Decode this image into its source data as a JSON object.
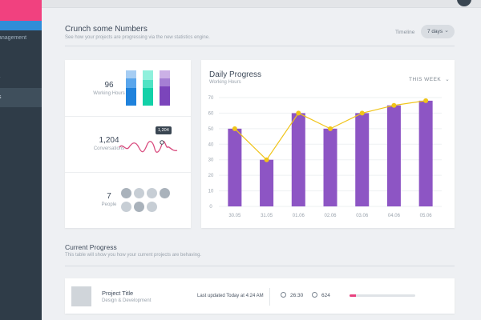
{
  "sidebar": {
    "items": [
      {
        "label": "anagement"
      },
      {
        "label": "r"
      },
      {
        "label": "s"
      }
    ]
  },
  "header": {
    "title": "Crunch some Numbers",
    "subtitle": "See how your projects are progressing via the new statistics engine.",
    "timeline_label": "Timeline",
    "timeline_value": "7 days"
  },
  "stats": {
    "working_hours": {
      "value": "96",
      "label": "Working Hours"
    },
    "conversations": {
      "value": "1,204",
      "label": "Conversations",
      "tooltip": "1,204"
    },
    "people": {
      "value": "7",
      "label": "People"
    }
  },
  "daily": {
    "title": "Daily Progress",
    "subtitle": "Working Hours",
    "period": "THIS WEEK"
  },
  "chart_data": {
    "type": "bar",
    "categories": [
      "30.05",
      "31.05",
      "01.06",
      "02.06",
      "03.06",
      "04.06",
      "05.06"
    ],
    "series": [
      {
        "type": "bar",
        "values": [
          50,
          30,
          60,
          50,
          60,
          65,
          68
        ]
      },
      {
        "type": "line",
        "values": [
          50,
          30,
          60,
          50,
          60,
          65,
          68
        ]
      }
    ],
    "title": "Daily Progress",
    "subtitle": "Working Hours",
    "yticks": [
      0,
      10,
      20,
      30,
      40,
      50,
      60,
      70
    ],
    "ylim": [
      0,
      70
    ],
    "grid": true,
    "colors": {
      "bar": "#8d55c4",
      "line": "#f0c419"
    }
  },
  "current": {
    "title": "Current Progress",
    "subtitle": "This table will show you how your current projects are behaving.",
    "project": {
      "title": "Project Title",
      "category": "Design & Development",
      "updated": "Last updated Today at 4:24 AM",
      "time": "26:30",
      "comments": "624",
      "progress": 0.1
    }
  },
  "colors": {
    "accent": "#f1417f",
    "blue": "#2f8dd8",
    "purple": "#8d55c4",
    "teal": "#1fd4b0",
    "yellow": "#f0c419"
  }
}
